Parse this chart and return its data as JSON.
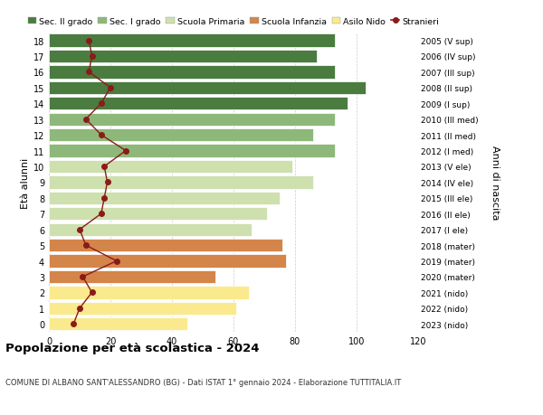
{
  "ages": [
    0,
    1,
    2,
    3,
    4,
    5,
    6,
    7,
    8,
    9,
    10,
    11,
    12,
    13,
    14,
    15,
    16,
    17,
    18
  ],
  "right_labels": [
    "2023 (nido)",
    "2022 (nido)",
    "2021 (nido)",
    "2020 (mater)",
    "2019 (mater)",
    "2018 (mater)",
    "2017 (I ele)",
    "2016 (II ele)",
    "2015 (III ele)",
    "2014 (IV ele)",
    "2013 (V ele)",
    "2012 (I med)",
    "2011 (II med)",
    "2010 (III med)",
    "2009 (I sup)",
    "2008 (II sup)",
    "2007 (III sup)",
    "2006 (IV sup)",
    "2005 (V sup)"
  ],
  "bar_values": [
    45,
    61,
    65,
    54,
    77,
    76,
    66,
    71,
    75,
    86,
    79,
    93,
    86,
    93,
    97,
    103,
    93,
    87,
    93
  ],
  "bar_colors": [
    "#fbe98d",
    "#fbe98d",
    "#fbe98d",
    "#d4854a",
    "#d4854a",
    "#d4854a",
    "#cde0ae",
    "#cde0ae",
    "#cde0ae",
    "#cde0ae",
    "#cde0ae",
    "#8db87a",
    "#8db87a",
    "#8db87a",
    "#4a7c40",
    "#4a7c40",
    "#4a7c40",
    "#4a7c40",
    "#4a7c40"
  ],
  "stranieri_values": [
    8,
    10,
    14,
    11,
    22,
    12,
    10,
    17,
    18,
    19,
    18,
    25,
    17,
    12,
    17,
    20,
    13,
    14,
    13
  ],
  "stranieri_color": "#8b1a1a",
  "legend_entries": [
    {
      "label": "Sec. II grado",
      "color": "#4a7c40"
    },
    {
      "label": "Sec. I grado",
      "color": "#8db87a"
    },
    {
      "label": "Scuola Primaria",
      "color": "#cde0ae"
    },
    {
      "label": "Scuola Infanzia",
      "color": "#d4854a"
    },
    {
      "label": "Asilo Nido",
      "color": "#fbe98d"
    },
    {
      "label": "Stranieri",
      "color": "#8b1a1a"
    }
  ],
  "ylabel_left": "Età alunni",
  "ylabel_right": "Anni di nascita",
  "title": "Popolazione per età scolastica - 2024",
  "subtitle": "COMUNE DI ALBANO SANT'ALESSANDRO (BG) - Dati ISTAT 1° gennaio 2024 - Elaborazione TUTTITALIA.IT",
  "xlim": [
    0,
    120
  ],
  "xticks": [
    0,
    20,
    40,
    60,
    80,
    100,
    120
  ],
  "bg_color": "#ffffff",
  "bar_edgecolor": "#ffffff",
  "grid_color": "#cccccc"
}
